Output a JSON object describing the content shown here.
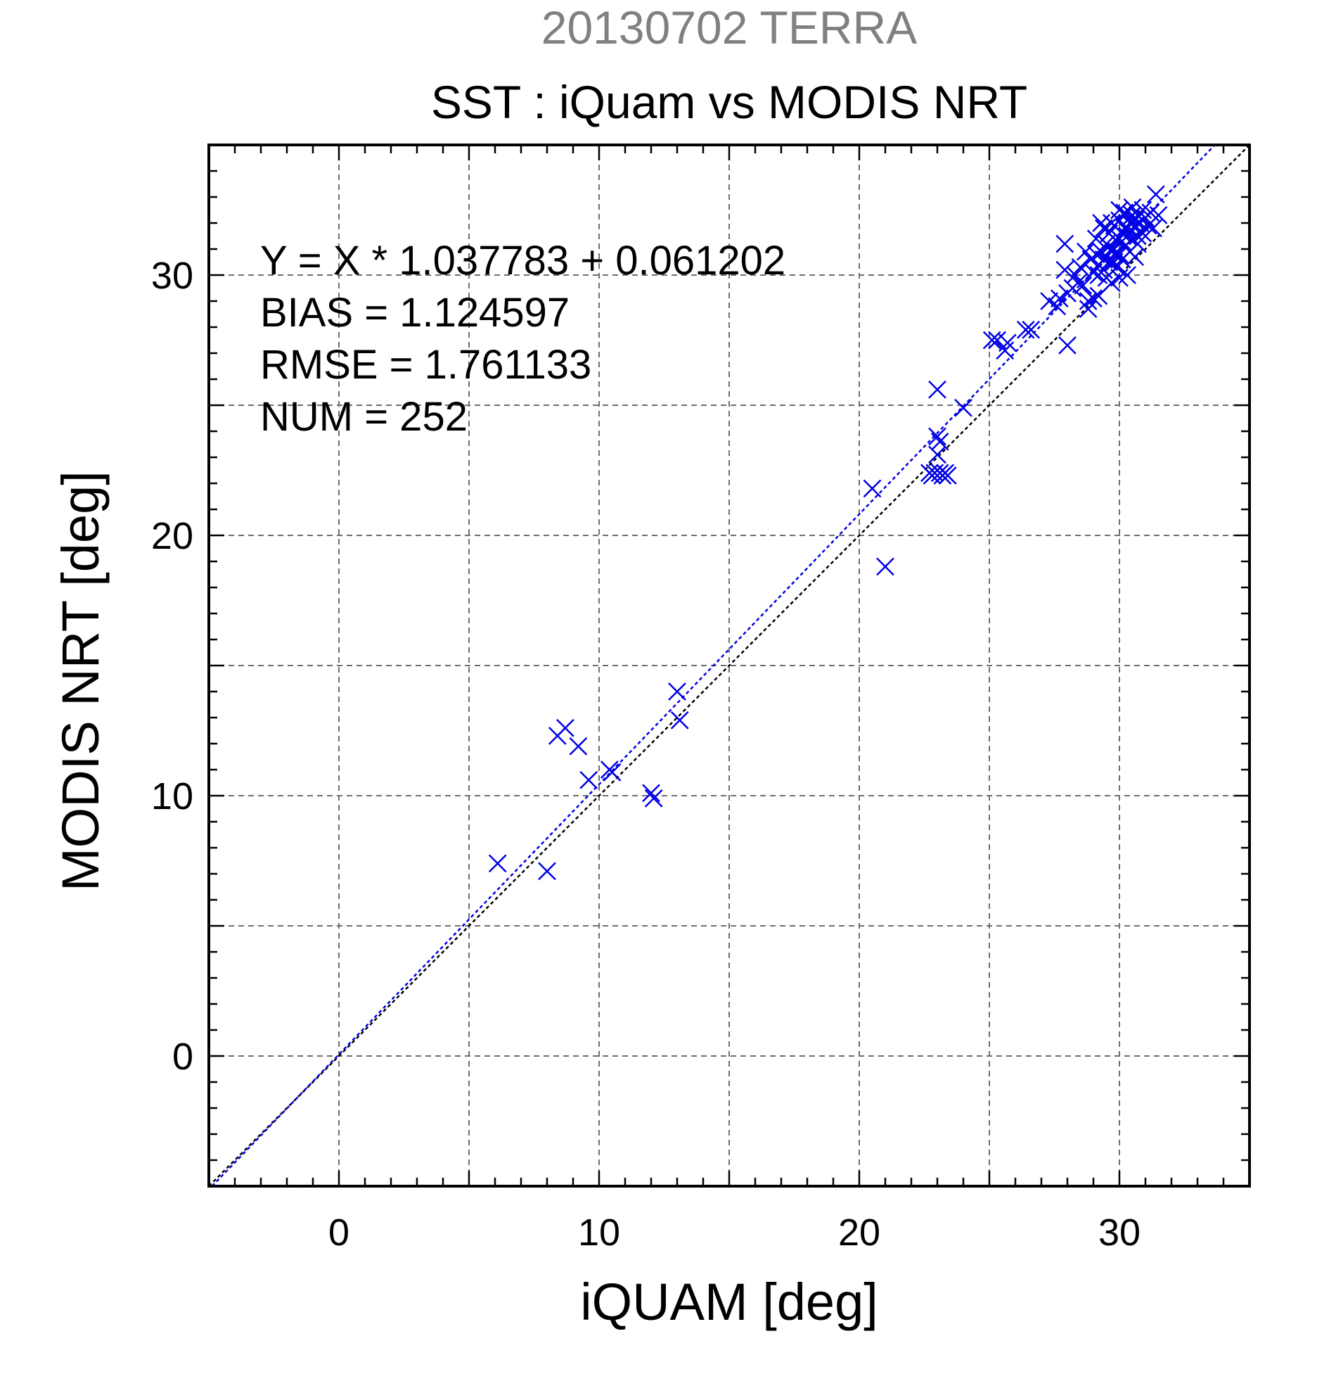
{
  "header": {
    "suptitle": "20130702 TERRA",
    "title": "SST : iQuam vs MODIS NRT"
  },
  "stats": {
    "lines": [
      "Y = X * 1.037783 + 0.061202",
      "BIAS = 1.124597",
      "RMSE = 1.761133",
      "NUM = 252"
    ]
  },
  "colors": {
    "series": "#0000e6",
    "reference": "#000000",
    "grid": "#6e6e6e",
    "suptitle": "#808080"
  },
  "chart_data": {
    "type": "scatter",
    "title": "SST : iQuam vs MODIS NRT",
    "xlabel": "iQUAM [deg]",
    "ylabel": "MODIS NRT [deg]",
    "xlim": [
      -5,
      35
    ],
    "ylim": [
      -5,
      35
    ],
    "xticks": [
      0,
      10,
      20,
      30
    ],
    "yticks": [
      0,
      10,
      20,
      30
    ],
    "grid_every": 5,
    "minor_every": 1,
    "grid": true,
    "marker": "x",
    "fit": {
      "slope": 1.037783,
      "intercept": 0.061202
    },
    "reference_line": {
      "slope": 1,
      "intercept": 0
    },
    "series": [
      {
        "values": [
          [
            6.1,
            7.4
          ],
          [
            8.0,
            7.1
          ],
          [
            8.4,
            12.3
          ],
          [
            8.7,
            12.6
          ],
          [
            9.2,
            11.9
          ],
          [
            9.6,
            10.6
          ],
          [
            10.4,
            11.0
          ],
          [
            10.5,
            10.9
          ],
          [
            12.0,
            10.1
          ],
          [
            12.1,
            9.9
          ],
          [
            13.0,
            14.0
          ],
          [
            13.1,
            12.9
          ],
          [
            20.5,
            21.8
          ],
          [
            21.0,
            18.8
          ],
          [
            22.7,
            22.4
          ],
          [
            22.8,
            22.3
          ],
          [
            22.9,
            22.4
          ],
          [
            23.0,
            23.8
          ],
          [
            23.0,
            25.6
          ],
          [
            23.1,
            22.4
          ],
          [
            23.2,
            22.3
          ],
          [
            23.3,
            22.4
          ],
          [
            23.4,
            22.3
          ],
          [
            23.0,
            23.1
          ],
          [
            23.1,
            23.6
          ],
          [
            24.0,
            24.9
          ],
          [
            25.1,
            27.5
          ],
          [
            25.3,
            27.5
          ],
          [
            25.6,
            27.1
          ],
          [
            25.7,
            27.4
          ],
          [
            26.4,
            27.9
          ],
          [
            26.6,
            27.9
          ],
          [
            27.3,
            29.0
          ],
          [
            27.6,
            28.8
          ],
          [
            27.7,
            29.1
          ],
          [
            27.9,
            30.2
          ],
          [
            27.9,
            31.2
          ],
          [
            28.0,
            29.3
          ],
          [
            28.0,
            27.3
          ],
          [
            28.2,
            29.5
          ],
          [
            28.3,
            30.0
          ],
          [
            28.4,
            29.7
          ],
          [
            28.5,
            30.3
          ],
          [
            28.6,
            29.6
          ],
          [
            28.7,
            30.9
          ],
          [
            28.8,
            29.0
          ],
          [
            28.8,
            28.7
          ],
          [
            28.9,
            30.6
          ],
          [
            29.0,
            30.1
          ],
          [
            29.0,
            29.1
          ],
          [
            29.1,
            31.4
          ],
          [
            29.1,
            30.8
          ],
          [
            29.2,
            30.4
          ],
          [
            29.2,
            29.2
          ],
          [
            29.3,
            32.0
          ],
          [
            29.3,
            30.9
          ],
          [
            29.4,
            30.2
          ],
          [
            29.4,
            30.6
          ],
          [
            29.5,
            31.2
          ],
          [
            29.5,
            29.9
          ],
          [
            29.6,
            31.6
          ],
          [
            29.6,
            30.5
          ],
          [
            29.7,
            31.0
          ],
          [
            29.7,
            29.7
          ],
          [
            29.8,
            30.8
          ],
          [
            29.8,
            31.9
          ],
          [
            29.9,
            30.3
          ],
          [
            29.9,
            31.3
          ],
          [
            30.0,
            32.1
          ],
          [
            30.0,
            30.8
          ],
          [
            30.0,
            29.9
          ],
          [
            30.1,
            31.6
          ],
          [
            30.1,
            30.6
          ],
          [
            30.2,
            32.4
          ],
          [
            30.2,
            31.1
          ],
          [
            30.3,
            30.0
          ],
          [
            30.3,
            31.8
          ],
          [
            30.4,
            32.2
          ],
          [
            30.4,
            30.9
          ],
          [
            30.5,
            31.4
          ],
          [
            30.5,
            32.6
          ],
          [
            30.6,
            31.9
          ],
          [
            30.6,
            30.7
          ],
          [
            30.7,
            32.3
          ],
          [
            30.7,
            31.2
          ],
          [
            30.8,
            32.0
          ],
          [
            30.9,
            32.5
          ],
          [
            30.9,
            31.6
          ],
          [
            31.0,
            32.2
          ],
          [
            31.1,
            31.9
          ],
          [
            31.2,
            32.4
          ],
          [
            31.3,
            31.8
          ],
          [
            31.5,
            32.3
          ],
          [
            31.4,
            33.1
          ],
          [
            29.9,
            30.9
          ],
          [
            30.1,
            31.3
          ],
          [
            30.3,
            31.5
          ],
          [
            29.4,
            31.8
          ],
          [
            29.6,
            31.1
          ],
          [
            29.8,
            30.5
          ],
          [
            30.0,
            31.4
          ],
          [
            30.2,
            31.8
          ],
          [
            30.4,
            32.0
          ],
          [
            30.6,
            32.1
          ],
          [
            30.8,
            31.7
          ],
          [
            29.2,
            30.0
          ],
          [
            29.5,
            30.7
          ],
          [
            29.7,
            32.0
          ],
          [
            30.5,
            32.3
          ],
          [
            30.0,
            32.5
          ],
          [
            30.7,
            31.5
          ]
        ]
      }
    ]
  }
}
